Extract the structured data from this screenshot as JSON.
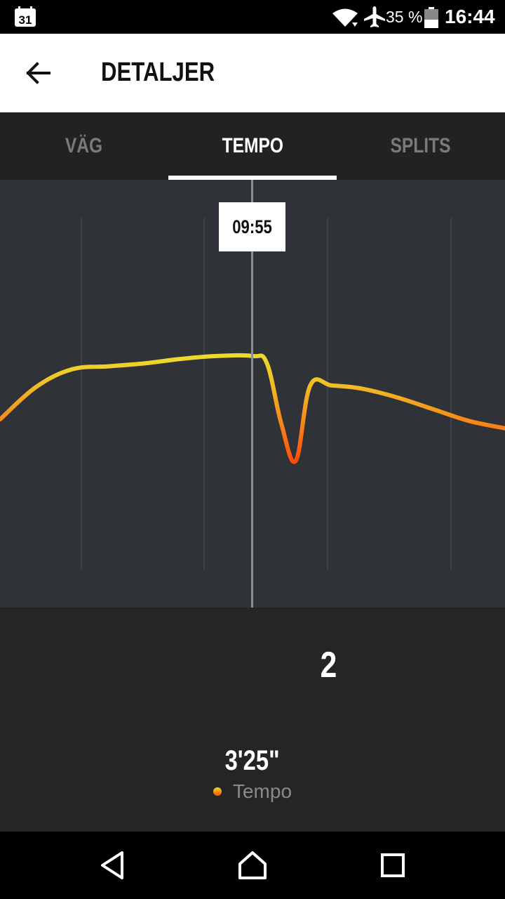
{
  "status_bar": {
    "calendar_day": "31",
    "battery_percent": "35 %",
    "time": "16:44"
  },
  "app_bar": {
    "title": "DETALJER"
  },
  "tabs": [
    {
      "label": "VÄG",
      "active": false
    },
    {
      "label": "TEMPO",
      "active": true
    },
    {
      "label": "SPLITS",
      "active": false
    }
  ],
  "chart": {
    "cursor_time": "09:55"
  },
  "chart_data": {
    "type": "line",
    "title": "",
    "xlabel": "",
    "ylabel": "",
    "series": [
      {
        "name": "Tempo",
        "x": [
          0,
          0.5,
          1,
          1.5,
          2,
          2.5,
          3,
          3.5,
          3.7,
          3.9,
          4.1,
          4.3,
          4.6,
          5,
          5.5,
          6,
          6.5,
          7
        ],
        "y": [
          0.28,
          0.5,
          0.62,
          0.64,
          0.66,
          0.69,
          0.71,
          0.71,
          0.66,
          0.25,
          0.0,
          0.51,
          0.51,
          0.49,
          0.43,
          0.35,
          0.27,
          0.22
        ]
      }
    ],
    "color_scale": [
      "#e6ff3a",
      "#ff4e0e"
    ],
    "grid": "vertical"
  },
  "info": {
    "lap_number": "2",
    "pace_value": "3'25\"",
    "legend_label": "Tempo"
  },
  "colors": {
    "accent_fast": "#e6ff3a",
    "accent_slow": "#ff4e0e",
    "chart_bg": "#2f3236"
  }
}
